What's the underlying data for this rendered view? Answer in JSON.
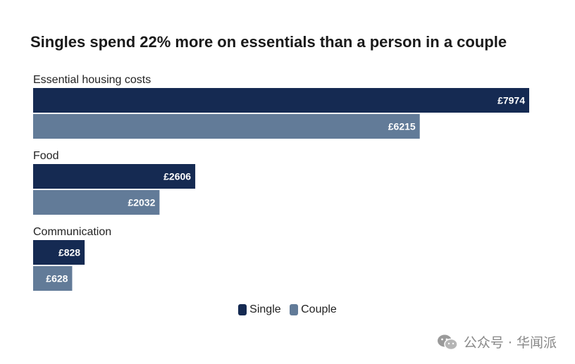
{
  "chart_data": {
    "type": "bar",
    "orientation": "horizontal",
    "title": "Singles spend 22% more on essentials than a person in a couple",
    "categories": [
      "Essential housing costs",
      "Food",
      "Communication"
    ],
    "series": [
      {
        "name": "Single",
        "values": [
          7974,
          2606,
          828
        ],
        "labels": [
          "£7974",
          "£2606",
          "£828"
        ],
        "color": "#152a52"
      },
      {
        "name": "Couple",
        "values": [
          6215,
          2032,
          628
        ],
        "labels": [
          "£6215",
          "£2032",
          "£628"
        ],
        "color": "#627b98"
      }
    ],
    "xlim": [
      0,
      7974
    ],
    "legend_position": "bottom"
  },
  "watermark": {
    "text": "公众号 · 华闻派",
    "icon": "wechat-icon"
  }
}
